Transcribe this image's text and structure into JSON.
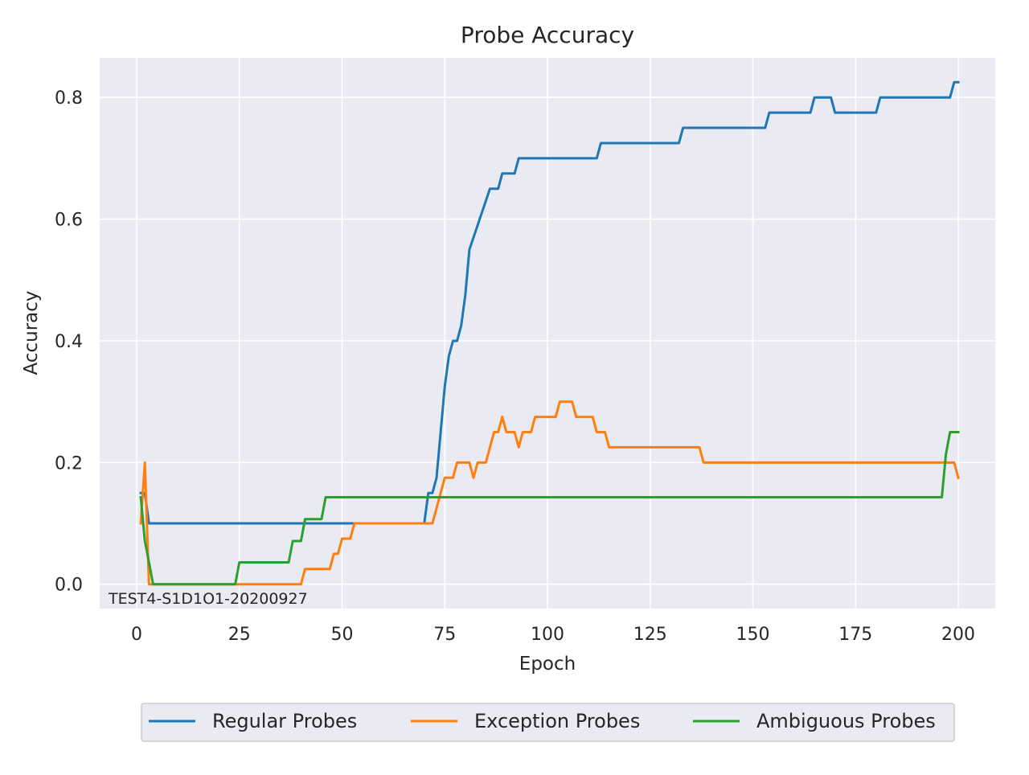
{
  "chart_data": {
    "type": "line",
    "title": "Probe Accuracy",
    "xlabel": "Epoch",
    "ylabel": "Accuracy",
    "xlim": [
      -9,
      209
    ],
    "ylim": [
      -0.04,
      0.865
    ],
    "xticks": [
      0,
      25,
      50,
      75,
      100,
      125,
      150,
      175,
      200
    ],
    "yticks": [
      0.0,
      0.2,
      0.4,
      0.6,
      0.8
    ],
    "ytick_labels": [
      "0.0",
      "0.2",
      "0.4",
      "0.6",
      "0.8"
    ],
    "grid": true,
    "legend_placement": "bottom-center outside",
    "annotation": "TEST4-S1D1O1-20200927",
    "series": [
      {
        "name": "Regular Probes",
        "color": "#1f77b4",
        "points": [
          [
            1,
            0.15
          ],
          [
            2,
            0.15
          ],
          [
            3,
            0.1
          ],
          [
            4,
            0.1
          ],
          [
            70,
            0.1
          ],
          [
            71,
            0.15
          ],
          [
            72,
            0.15
          ],
          [
            73,
            0.175
          ],
          [
            74,
            0.25
          ],
          [
            75,
            0.325
          ],
          [
            76,
            0.375
          ],
          [
            77,
            0.4
          ],
          [
            78,
            0.4
          ],
          [
            79,
            0.425
          ],
          [
            80,
            0.475
          ],
          [
            81,
            0.55
          ],
          [
            86,
            0.65
          ],
          [
            88,
            0.65
          ],
          [
            89,
            0.675
          ],
          [
            92,
            0.675
          ],
          [
            93,
            0.7
          ],
          [
            112,
            0.7
          ],
          [
            113,
            0.725
          ],
          [
            132,
            0.725
          ],
          [
            133,
            0.75
          ],
          [
            153,
            0.75
          ],
          [
            154,
            0.775
          ],
          [
            164,
            0.775
          ],
          [
            165,
            0.8
          ],
          [
            169,
            0.8
          ],
          [
            170,
            0.775
          ],
          [
            180,
            0.775
          ],
          [
            181,
            0.8
          ],
          [
            198,
            0.8
          ],
          [
            199,
            0.825
          ],
          [
            200,
            0.825
          ]
        ]
      },
      {
        "name": "Exception Probes",
        "color": "#ff7f0e",
        "points": [
          [
            1,
            0.1
          ],
          [
            2,
            0.2
          ],
          [
            3,
            0.0
          ],
          [
            4,
            0.0
          ],
          [
            40,
            0.0
          ],
          [
            41,
            0.025
          ],
          [
            47,
            0.025
          ],
          [
            48,
            0.05
          ],
          [
            49,
            0.05
          ],
          [
            50,
            0.075
          ],
          [
            52,
            0.075
          ],
          [
            53,
            0.1
          ],
          [
            72,
            0.1
          ],
          [
            73,
            0.125
          ],
          [
            74,
            0.15
          ],
          [
            75,
            0.175
          ],
          [
            77,
            0.175
          ],
          [
            78,
            0.2
          ],
          [
            81,
            0.2
          ],
          [
            82,
            0.175
          ],
          [
            83,
            0.2
          ],
          [
            85,
            0.2
          ],
          [
            86,
            0.225
          ],
          [
            87,
            0.25
          ],
          [
            88,
            0.25
          ],
          [
            89,
            0.275
          ],
          [
            90,
            0.25
          ],
          [
            92,
            0.25
          ],
          [
            93,
            0.225
          ],
          [
            94,
            0.25
          ],
          [
            96,
            0.25
          ],
          [
            97,
            0.275
          ],
          [
            102,
            0.275
          ],
          [
            103,
            0.3
          ],
          [
            106,
            0.3
          ],
          [
            107,
            0.275
          ],
          [
            111,
            0.275
          ],
          [
            112,
            0.25
          ],
          [
            114,
            0.25
          ],
          [
            115,
            0.225
          ],
          [
            137,
            0.225
          ],
          [
            138,
            0.2
          ],
          [
            198,
            0.2
          ],
          [
            199,
            0.2
          ],
          [
            200,
            0.175
          ]
        ]
      },
      {
        "name": "Ambiguous Probes",
        "color": "#2ca02c",
        "points": [
          [
            1,
            0.143
          ],
          [
            2,
            0.071
          ],
          [
            3,
            0.036
          ],
          [
            4,
            0.0
          ],
          [
            24,
            0.0
          ],
          [
            25,
            0.036
          ],
          [
            37,
            0.036
          ],
          [
            38,
            0.071
          ],
          [
            40,
            0.071
          ],
          [
            41,
            0.107
          ],
          [
            45,
            0.107
          ],
          [
            46,
            0.143
          ],
          [
            196,
            0.143
          ],
          [
            197,
            0.214
          ],
          [
            198,
            0.25
          ],
          [
            200,
            0.25
          ]
        ]
      }
    ]
  }
}
